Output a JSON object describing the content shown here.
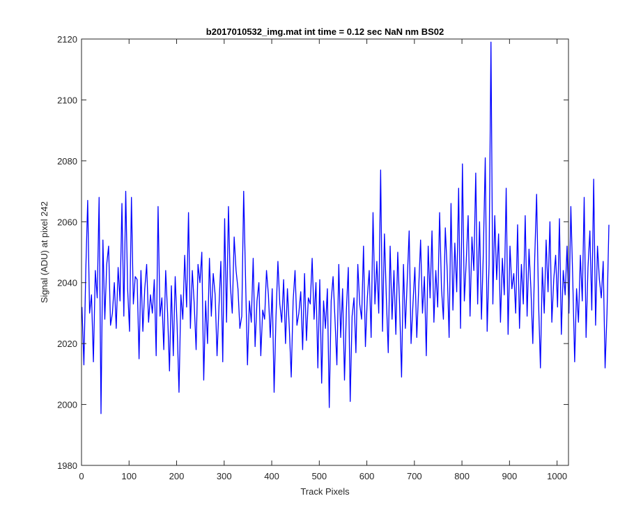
{
  "chart_data": {
    "type": "line",
    "title": "b2017010532_img.mat int time = 0.12 sec  NaN nm BS02",
    "xlabel": "Track Pixels",
    "ylabel": "Signal (ADU) at pixel 242",
    "xlim": [
      0,
      1024
    ],
    "ylim": [
      1980,
      2120
    ],
    "x_ticks": [
      0,
      100,
      200,
      300,
      400,
      500,
      600,
      700,
      800,
      900,
      1000
    ],
    "y_ticks": [
      1980,
      2000,
      2020,
      2040,
      2060,
      2080,
      2100,
      2120
    ],
    "x_tick_labels": [
      "0",
      "100",
      "200",
      "300",
      "400",
      "500",
      "600",
      "700",
      "800",
      "900",
      "1000"
    ],
    "y_tick_labels": [
      "1980",
      "2000",
      "2020",
      "2040",
      "2060",
      "2080",
      "2100",
      "2120"
    ],
    "grid": false,
    "legend": "none",
    "series": [
      {
        "color": "#0000ff",
        "x_start": 1,
        "x_step": 4,
        "values": [
          2032,
          2013,
          2044,
          2067,
          2030,
          2036,
          2014,
          2044,
          2035,
          2068,
          1997,
          2054,
          2028,
          2046,
          2052,
          2026,
          2030,
          2040,
          2025,
          2045,
          2034,
          2066,
          2029,
          2070,
          2038,
          2024,
          2068,
          2033,
          2042,
          2041,
          2015,
          2044,
          2024,
          2038,
          2046,
          2027,
          2036,
          2030,
          2041,
          2016,
          2065,
          2029,
          2035,
          2018,
          2044,
          2030,
          2011,
          2039,
          2016,
          2042,
          2026,
          2004,
          2036,
          2028,
          2049,
          2032,
          2063,
          2025,
          2044,
          2033,
          2018,
          2046,
          2040,
          2050,
          2008,
          2034,
          2020,
          2048,
          2029,
          2043,
          2036,
          2016,
          2032,
          2047,
          2014,
          2061,
          2027,
          2065,
          2039,
          2030,
          2055,
          2044,
          2038,
          2025,
          2029,
          2070,
          2041,
          2013,
          2034,
          2027,
          2048,
          2019,
          2034,
          2040,
          2016,
          2031,
          2028,
          2044,
          2036,
          2022,
          2038,
          2004,
          2029,
          2047,
          2033,
          2027,
          2041,
          2020,
          2038,
          2025,
          2009,
          2034,
          2044,
          2026,
          2030,
          2037,
          2018,
          2043,
          2021,
          2035,
          2033,
          2048,
          2028,
          2040,
          2012,
          2041,
          2007,
          2034,
          2025,
          2038,
          1999,
          2034,
          2042,
          2028,
          2013,
          2046,
          2022,
          2038,
          2008,
          2031,
          2045,
          2001,
          2029,
          2035,
          2017,
          2046,
          2033,
          2028,
          2052,
          2019,
          2035,
          2044,
          2022,
          2063,
          2033,
          2047,
          2030,
          2077,
          2024,
          2056,
          2035,
          2017,
          2052,
          2028,
          2044,
          2023,
          2050,
          2032,
          2009,
          2046,
          2025,
          2041,
          2057,
          2020,
          2033,
          2045,
          2022,
          2038,
          2054,
          2030,
          2042,
          2016,
          2052,
          2035,
          2057,
          2027,
          2044,
          2032,
          2063,
          2038,
          2028,
          2058,
          2044,
          2022,
          2066,
          2031,
          2053,
          2037,
          2071,
          2025,
          2079,
          2034,
          2047,
          2062,
          2029,
          2055,
          2044,
          2076,
          2033,
          2060,
          2028,
          2050,
          2081,
          2024,
          2046,
          2119,
          2033,
          2062,
          2041,
          2056,
          2027,
          2048,
          2036,
          2071,
          2023,
          2052,
          2038,
          2043,
          2030,
          2059,
          2025,
          2046,
          2033,
          2062,
          2029,
          2051,
          2038,
          2020,
          2048,
          2069,
          2034,
          2012,
          2045,
          2030,
          2054,
          2037,
          2060,
          2027,
          2041,
          2049,
          2032,
          2061,
          2023,
          2044,
          2036,
          2052,
          2030,
          2065,
          2041,
          2014,
          2038,
          2027,
          2049,
          2034,
          2068,
          2022,
          2045,
          2057,
          2031,
          2074,
          2026,
          2052,
          2041,
          2035,
          2047,
          2012,
          2030,
          2059
        ]
      }
    ]
  }
}
